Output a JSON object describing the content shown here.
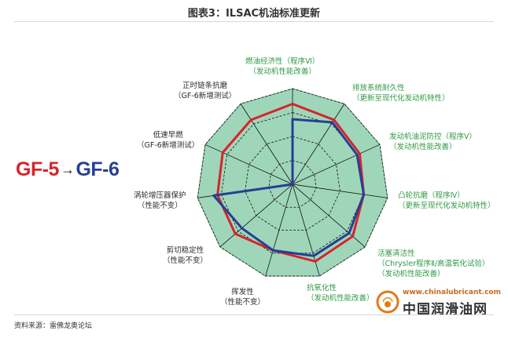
{
  "title": "图表3：ILSAC机油标准更新",
  "gf_label": {
    "left": "GF-5",
    "arrow": "→",
    "right": "GF-6"
  },
  "source": "资料来源：雷佛龙奥论坛",
  "watermark": {
    "url": "www.chinalubricant.com",
    "name": "中国润滑油网"
  },
  "colors": {
    "gf5": "#d8232a",
    "gf6": "#273f94",
    "fill": "#9fd6b9",
    "web": "#111111",
    "label_green": "#2e9a44"
  },
  "axes": [
    {
      "line1": "燃油经济性（程序Ⅵ）",
      "line2": "（发动机性能改善）"
    },
    {
      "line1": "排放系统耐久性",
      "line2": "（更新至现代化发动机特性）"
    },
    {
      "line1": "发动机油泥防控（程序Ⅴ）",
      "line2": "（发动机性能改善）"
    },
    {
      "line1": "凸轮抗磨（程序Ⅳ）",
      "line2": "（更新至现代化发动机特性）"
    },
    {
      "line1": "活塞清洁性",
      "line2": "（Chrysler程序Ⅱ/高温氧化试验）",
      "line3": "（发动机性能改善）"
    },
    {
      "line1": "抗氧化性",
      "line2": "（发动机性能改善）"
    },
    {
      "line1": "挥发性",
      "line2": "（性能不变）"
    },
    {
      "line1": "剪切稳定性",
      "line2": "（性能不变）"
    },
    {
      "line1": "涡轮增压器保护",
      "line2": "（性能不变）"
    },
    {
      "line1": "低速早燃",
      "line2": "（GF-6新增测试）"
    },
    {
      "line1": "正时链条抗磨",
      "line2": "（GF-6新增测试）"
    }
  ],
  "chart_data": {
    "type": "radar",
    "title": "图表3：ILSAC机油标准更新",
    "categories": [
      "燃油经济性",
      "排放系统耐久性",
      "发动机油泥防控",
      "凸轮抗磨",
      "活塞清洁性",
      "抗氧化性",
      "挥发性",
      "剪切稳定性",
      "涡轮增压器保护",
      "低速早燃",
      "正时链条抗磨"
    ],
    "range": [
      0,
      1
    ],
    "rings": 4,
    "series": [
      {
        "name": "GF-5",
        "values": [
          0.84,
          0.8,
          0.77,
          0.75,
          0.83,
          0.84,
          0.72,
          0.79,
          0.79,
          0.8,
          0.8
        ]
      },
      {
        "name": "GF-6",
        "values": [
          0.68,
          0.77,
          0.74,
          0.75,
          0.78,
          0.78,
          0.72,
          0.7,
          0.83,
          0.0,
          0.0
        ]
      }
    ]
  }
}
